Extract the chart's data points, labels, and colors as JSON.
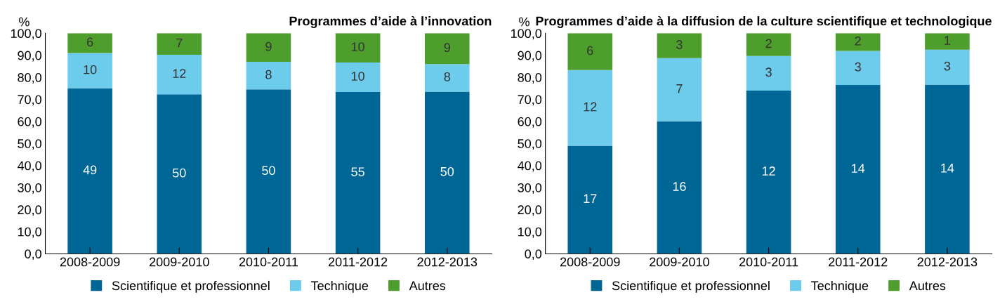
{
  "chart_data": [
    {
      "type": "bar",
      "stacked": true,
      "title": "Programmes d’aide à l’innovation",
      "ylabel": "%",
      "categories": [
        "2008-2009",
        "2009-2010",
        "2010-2011",
        "2011-2012",
        "2012-2013"
      ],
      "ylim": [
        0,
        100
      ],
      "yticks": [
        {
          "value": 0,
          "label": "0,0"
        },
        {
          "value": 10,
          "label": "10,0"
        },
        {
          "value": 20,
          "label": "20,0"
        },
        {
          "value": 30,
          "label": "30,0"
        },
        {
          "value": 40,
          "label": "40,0"
        },
        {
          "value": 50,
          "label": "50,0"
        },
        {
          "value": 60,
          "label": "60,0"
        },
        {
          "value": 70,
          "label": "70,0"
        },
        {
          "value": 80,
          "label": "80,0"
        },
        {
          "value": 90,
          "label": "90,0"
        },
        {
          "value": 100,
          "label": "100,0"
        }
      ],
      "legend": "bottom",
      "grid": false,
      "series": [
        {
          "name": "Scientifique et professionnel",
          "color": "#006695",
          "values": [
            75,
            72.3,
            74.5,
            73.3,
            73.5
          ]
        },
        {
          "name": "Technique",
          "color": "#6dcbeb",
          "values": [
            16,
            17.9,
            12.5,
            13.4,
            12.5
          ]
        },
        {
          "name": "Autres",
          "color": "#4d9e2d",
          "values": [
            9,
            9.8,
            13,
            13.3,
            14
          ]
        }
      ],
      "annotations": [
        "49",
        "10",
        "6",
        "50",
        "12",
        "7",
        "50",
        "8",
        "9",
        "55",
        "10",
        "10",
        "50",
        "8",
        "9"
      ]
    },
    {
      "type": "bar",
      "stacked": true,
      "title": "Programmes d’aide à la diffusion de la culture scientifique et technologique",
      "ylabel": "%",
      "categories": [
        "2008-2009",
        "2009-2010",
        "2010-2011",
        "2011-2012",
        "2012-2013"
      ],
      "ylim": [
        0,
        100
      ],
      "yticks": [
        {
          "value": 0,
          "label": "0,0"
        },
        {
          "value": 10,
          "label": "10,0"
        },
        {
          "value": 20,
          "label": "20,0"
        },
        {
          "value": 30,
          "label": "30,0"
        },
        {
          "value": 40,
          "label": "40,0"
        },
        {
          "value": 50,
          "label": "50,0"
        },
        {
          "value": 60,
          "label": "60,0"
        },
        {
          "value": 70,
          "label": "70,0"
        },
        {
          "value": 80,
          "label": "80,0"
        },
        {
          "value": 90,
          "label": "90,0"
        },
        {
          "value": 100,
          "label": "100,0"
        }
      ],
      "legend": "bottom",
      "grid": false,
      "series": [
        {
          "name": "Scientifique et professionnel",
          "color": "#006695",
          "values": [
            49,
            60,
            74,
            76.5,
            76.7
          ]
        },
        {
          "name": "Technique",
          "color": "#6dcbeb",
          "values": [
            34.3,
            28.7,
            15.7,
            15.5,
            15.8
          ]
        },
        {
          "name": "Autres",
          "color": "#4d9e2d",
          "values": [
            16.7,
            11.3,
            10.3,
            8,
            7.5
          ]
        }
      ],
      "annotations": [
        "17",
        "12",
        "6",
        "16",
        "7",
        "3",
        "12",
        "3",
        "2",
        "14",
        "3",
        "2",
        "14",
        "3",
        "1"
      ]
    }
  ]
}
